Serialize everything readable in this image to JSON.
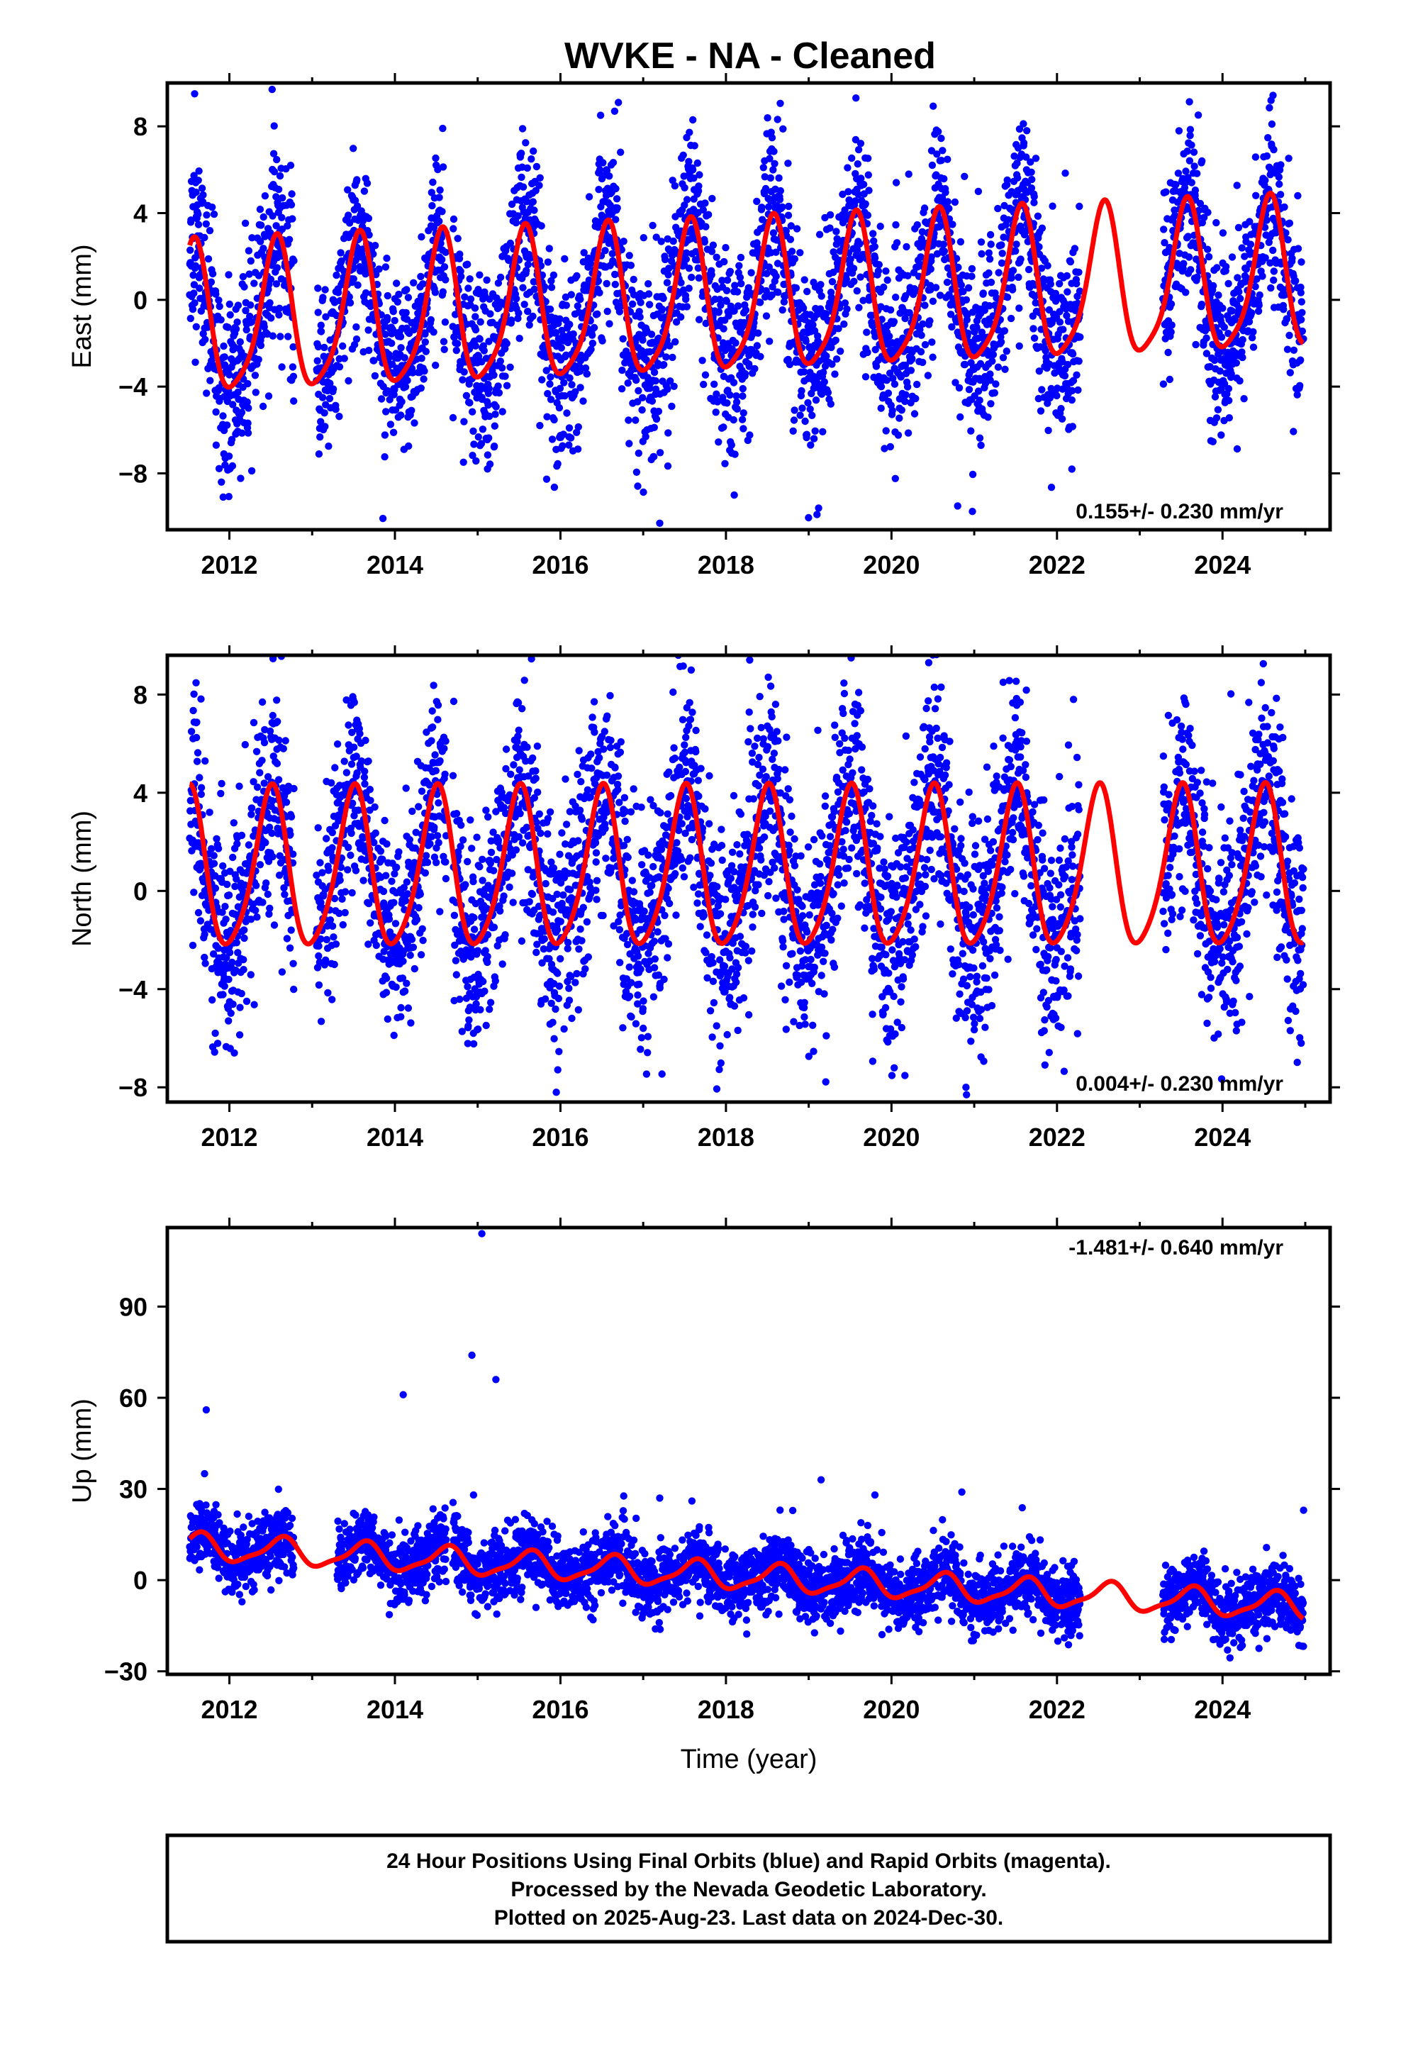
{
  "title": "WVKE  - NA - Cleaned",
  "colors": {
    "points": "#0000ff",
    "model": "#ff0000",
    "frame": "#000000"
  },
  "footer": {
    "line1": "24 Hour Positions Using Final Orbits (blue) and Rapid Orbits (magenta).",
    "line2": "Processed by the Nevada Geodetic Laboratory.",
    "line3": "Plotted on 2025-Aug-23. Last data on 2024-Dec-30."
  },
  "chart_data": [
    {
      "type": "scatter",
      "component": "east",
      "ylabel": "East (mm)",
      "xlabel": "",
      "xlim": [
        2011.25,
        2025.3
      ],
      "ylim": [
        -10.6,
        10.0
      ],
      "xticks": [
        2012,
        2014,
        2016,
        2018,
        2020,
        2022,
        2024
      ],
      "yticks": [
        -8,
        -4,
        0,
        4,
        8
      ],
      "rate_text": "0.155+/- 0.230 mm/yr",
      "rate_position": "bottom-right",
      "model": {
        "amp": 3.4,
        "phase": 0.56,
        "semi_amp": 0.7,
        "semi_phase": 0.1,
        "offset": -0.15,
        "trend": 0.155,
        "t0": 2018
      },
      "segments": [
        [
          2011.52,
          2012.78,
          2.2
        ],
        [
          2013.05,
          2014.62,
          1.9
        ],
        [
          2014.7,
          2022.28,
          2.1
        ],
        [
          2023.28,
          2024.98,
          2.0
        ]
      ],
      "outliers": [
        [
          2011.58,
          9.5
        ],
        [
          2011.84,
          -6.7
        ],
        [
          2014.2,
          -5.1
        ],
        [
          2016.7,
          9.1
        ],
        [
          2017.2,
          -10.3
        ],
        [
          2017.6,
          8.3
        ],
        [
          2018.1,
          -9.0
        ],
        [
          2019.1,
          -9.9
        ],
        [
          2019.12,
          -9.6
        ],
        [
          2020.8,
          -9.5
        ],
        [
          2021.05,
          5.0
        ],
        [
          2022.18,
          -7.8
        ],
        [
          2023.86,
          -6.5
        ]
      ]
    },
    {
      "type": "scatter",
      "component": "north",
      "ylabel": "North (mm)",
      "xlabel": "",
      "xlim": [
        2011.25,
        2025.3
      ],
      "ylim": [
        -8.6,
        9.6
      ],
      "xticks": [
        2012,
        2014,
        2016,
        2018,
        2020,
        2022,
        2024
      ],
      "yticks": [
        -8,
        -4,
        0,
        4,
        8
      ],
      "rate_text": "0.004+/- 0.230 mm/yr",
      "rate_position": "bottom-right",
      "model": {
        "amp": 3.2,
        "phase": 0.5,
        "semi_amp": 0.5,
        "semi_phase": 0.05,
        "offset": 0.75,
        "trend": 0.004,
        "t0": 2018
      },
      "segments": [
        [
          2011.52,
          2012.78,
          2.3
        ],
        [
          2013.05,
          2014.62,
          1.9
        ],
        [
          2014.7,
          2022.28,
          2.2
        ],
        [
          2023.28,
          2024.98,
          2.2
        ]
      ],
      "outliers": [
        [
          2017.58,
          9.0
        ],
        [
          2018.6,
          7.6
        ],
        [
          2020.45,
          9.3
        ],
        [
          2020.9,
          -8.0
        ],
        [
          2021.35,
          8.5
        ],
        [
          2022.2,
          7.8
        ],
        [
          2015.95,
          -8.2
        ]
      ]
    },
    {
      "type": "scatter",
      "component": "up",
      "ylabel": "Up (mm)",
      "xlabel": "Time (year)",
      "xlim": [
        2011.25,
        2025.3
      ],
      "ylim": [
        -31,
        116
      ],
      "xticks": [
        2012,
        2014,
        2016,
        2018,
        2020,
        2022,
        2024
      ],
      "yticks": [
        -30,
        0,
        30,
        60,
        90
      ],
      "rate_text": "-1.481+/- 0.640 mm/yr",
      "rate_position": "top-right",
      "model": {
        "amp": 4.2,
        "phase": 0.62,
        "semi_amp": 1.2,
        "semi_phase": 0.2,
        "offset": 1.4,
        "trend": -1.481,
        "t0": 2018
      },
      "segments": [
        [
          2011.52,
          2012.78,
          5.5
        ],
        [
          2013.3,
          2014.62,
          5.5
        ],
        [
          2014.7,
          2022.28,
          5.5
        ],
        [
          2023.28,
          2024.98,
          5.5
        ]
      ],
      "outliers": [
        [
          2011.72,
          56
        ],
        [
          2011.7,
          35
        ],
        [
          2014.1,
          61
        ],
        [
          2014.93,
          74
        ],
        [
          2015.05,
          114
        ],
        [
          2015.22,
          66
        ],
        [
          2019.15,
          33
        ],
        [
          2019.8,
          28
        ],
        [
          2020.85,
          29
        ],
        [
          2024.98,
          23
        ],
        [
          2014.95,
          28
        ],
        [
          2017.2,
          27
        ]
      ]
    }
  ]
}
